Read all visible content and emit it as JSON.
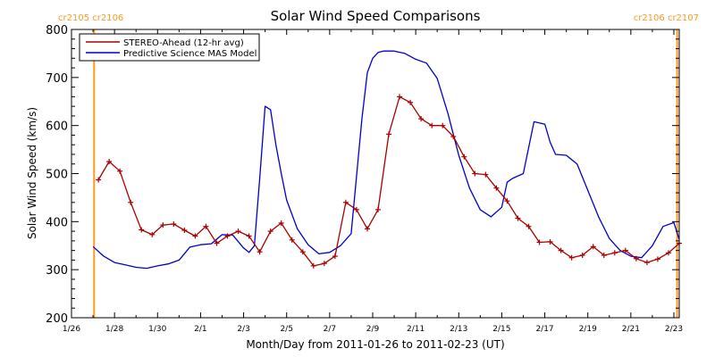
{
  "chart_data": {
    "type": "line",
    "title": "Solar Wind Speed Comparisons",
    "xlabel": "Month/Day from 2011-01-26 to 2011-02-23 (UT)",
    "ylabel": "Solar Wind Speed (km/s)",
    "xlim": [
      0,
      28.25
    ],
    "ylim": [
      200,
      800
    ],
    "x_ticks": [
      {
        "x": 0,
        "label": "1/26"
      },
      {
        "x": 2,
        "label": "1/28"
      },
      {
        "x": 4,
        "label": "1/30"
      },
      {
        "x": 6,
        "label": "2/1"
      },
      {
        "x": 8,
        "label": "2/3"
      },
      {
        "x": 10,
        "label": "2/5"
      },
      {
        "x": 12,
        "label": "2/7"
      },
      {
        "x": 14,
        "label": "2/9"
      },
      {
        "x": 16,
        "label": "2/11"
      },
      {
        "x": 18,
        "label": "2/13"
      },
      {
        "x": 20,
        "label": "2/15"
      },
      {
        "x": 22,
        "label": "2/17"
      },
      {
        "x": 24,
        "label": "2/19"
      },
      {
        "x": 26,
        "label": "2/21"
      },
      {
        "x": 28,
        "label": "2/23"
      }
    ],
    "y_ticks": [
      200,
      300,
      400,
      500,
      600,
      700,
      800
    ],
    "legend_position": "top-left",
    "carrington_markers": [
      {
        "x": 1.05,
        "label": "cr2105 cr2106",
        "side": "left"
      },
      {
        "x": 28.15,
        "label": "cr2106 cr2107",
        "side": "right"
      }
    ],
    "colors": {
      "stereo": "#aa0000",
      "model": "#0000cc",
      "marker_lines": "#ff9922",
      "axes": "#000000"
    },
    "series": [
      {
        "name": "STEREO-Ahead (12-hr avg)",
        "style": "line-plus-markers",
        "x": [
          1.25,
          1.75,
          2.25,
          2.75,
          3.25,
          3.75,
          4.25,
          4.75,
          5.25,
          5.75,
          6.25,
          6.75,
          7.25,
          7.75,
          8.25,
          8.75,
          9.25,
          9.75,
          10.25,
          10.75,
          11.25,
          11.75,
          12.25,
          12.75,
          13.25,
          13.75,
          14.25,
          14.75,
          15.25,
          15.75,
          16.25,
          16.75,
          17.25,
          17.75,
          18.25,
          18.75,
          19.25,
          19.75,
          20.25,
          20.75,
          21.25,
          21.75,
          22.25,
          22.75,
          23.25,
          23.75,
          24.25,
          24.75,
          25.25,
          25.75,
          26.25,
          26.75,
          27.25,
          27.75,
          28.25
        ],
        "values": [
          487,
          525,
          505,
          440,
          383,
          373,
          393,
          395,
          382,
          370,
          390,
          355,
          370,
          380,
          370,
          337,
          380,
          397,
          362,
          337,
          308,
          313,
          328,
          440,
          425,
          385,
          425,
          582,
          660,
          648,
          614,
          600,
          600,
          577,
          535,
          500,
          498,
          470,
          443,
          407,
          390,
          357,
          358,
          340,
          325,
          330,
          348,
          330,
          335,
          340,
          323,
          315,
          322,
          335,
          355
        ]
      },
      {
        "name": "Predictive Science MAS Model",
        "style": "line",
        "x": [
          1.0,
          1.5,
          2.0,
          2.5,
          3.0,
          3.5,
          4.0,
          4.5,
          5.0,
          5.5,
          6.0,
          6.5,
          7.0,
          7.5,
          8.0,
          8.25,
          8.5,
          8.75,
          9.0,
          9.25,
          9.5,
          9.75,
          10.0,
          10.5,
          11.0,
          11.5,
          12.0,
          12.5,
          13.0,
          13.5,
          13.75,
          14.0,
          14.25,
          14.5,
          15.0,
          15.5,
          16.0,
          16.5,
          17.0,
          17.5,
          18.0,
          18.5,
          19.0,
          19.5,
          20.0,
          20.25,
          20.5,
          21.0,
          21.5,
          22.0,
          22.25,
          22.5,
          23.0,
          23.5,
          24.0,
          24.5,
          25.0,
          25.5,
          26.0,
          26.5,
          27.0,
          27.5,
          28.0,
          28.25
        ],
        "values": [
          348,
          328,
          315,
          310,
          305,
          303,
          308,
          312,
          320,
          347,
          352,
          354,
          373,
          372,
          345,
          336,
          350,
          490,
          640,
          633,
          560,
          500,
          445,
          385,
          352,
          333,
          336,
          350,
          375,
          615,
          710,
          740,
          752,
          755,
          755,
          750,
          738,
          730,
          698,
          625,
          538,
          470,
          425,
          410,
          430,
          482,
          490,
          500,
          608,
          603,
          565,
          540,
          538,
          520,
          465,
          410,
          365,
          340,
          328,
          325,
          350,
          390,
          398,
          363
        ]
      }
    ]
  }
}
